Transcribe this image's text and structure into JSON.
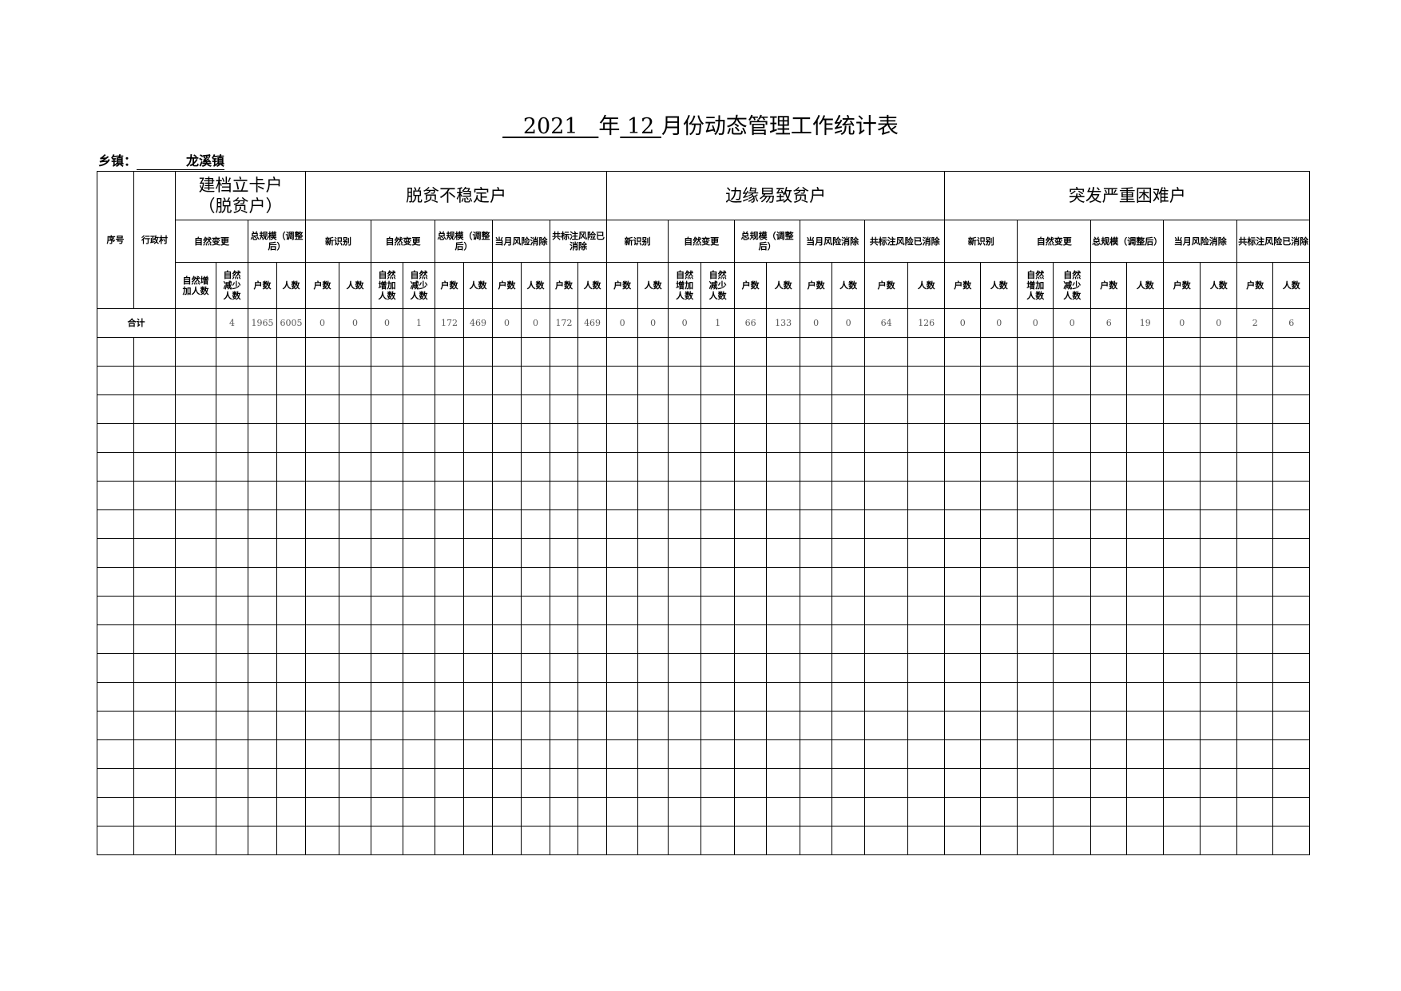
{
  "title": {
    "year": "2021",
    "year_suffix": "年",
    "month": "12",
    "rest": "月份动态管理工作统计表"
  },
  "township": {
    "label": "乡镇：",
    "value": "龙溪镇"
  },
  "header": {
    "serial": "序号",
    "village": "行政村",
    "groups": [
      {
        "label": "建档立卡户（脱贫户）",
        "sub": [
          {
            "label": "自然变更",
            "cols": [
              "自然增加人数",
              "自然减少人数"
            ]
          },
          {
            "label": "总规模（调整后）",
            "cols": [
              "户数",
              "人数"
            ]
          }
        ]
      },
      {
        "label": "脱贫不稳定户",
        "sub": [
          {
            "label": "新识别",
            "cols": [
              "户数",
              "人数"
            ]
          },
          {
            "label": "自然变更",
            "cols": [
              "自然增加人数",
              "自然减少人数"
            ]
          },
          {
            "label": "总规模（调整后）",
            "cols": [
              "户数",
              "人数"
            ]
          },
          {
            "label": "当月风险消除",
            "cols": [
              "户数",
              "人数"
            ]
          },
          {
            "label": "共标注风险已消除",
            "cols": [
              "户数",
              "人数"
            ]
          }
        ]
      },
      {
        "label": "边缘易致贫户",
        "sub": [
          {
            "label": "新识别",
            "cols": [
              "户数",
              "人数"
            ]
          },
          {
            "label": "自然变更",
            "cols": [
              "自然增加人数",
              "自然减少人数"
            ]
          },
          {
            "label": "总规模（调整后）",
            "cols": [
              "户数",
              "人数"
            ]
          },
          {
            "label": "当月风险消除",
            "cols": [
              "户数",
              "人数"
            ]
          },
          {
            "label": "共标注风险已消除",
            "cols": [
              "户数",
              "人数"
            ]
          }
        ]
      },
      {
        "label": "突发严重困难户",
        "sub": [
          {
            "label": "新识别",
            "cols": [
              "户数",
              "人数"
            ]
          },
          {
            "label": "自然变更",
            "cols": [
              "自然增加人数",
              "自然减少人数"
            ]
          },
          {
            "label": "总规模（调整后）",
            "cols": [
              "户数",
              "人数"
            ]
          },
          {
            "label": "当月风险消除",
            "cols": [
              "户数",
              "人数"
            ]
          },
          {
            "label": "共标注风险已消除",
            "cols": [
              "户数",
              "人数"
            ]
          }
        ]
      }
    ]
  },
  "total_row": {
    "label": "合计",
    "values": [
      "",
      "4",
      "1965",
      "6005",
      "0",
      "0",
      "0",
      "1",
      "172",
      "469",
      "0",
      "0",
      "172",
      "469",
      "0",
      "0",
      "0",
      "1",
      "66",
      "133",
      "0",
      "0",
      "64",
      "126",
      "0",
      "0",
      "0",
      "0",
      "6",
      "19",
      "0",
      "0",
      "2",
      "6"
    ]
  }
}
